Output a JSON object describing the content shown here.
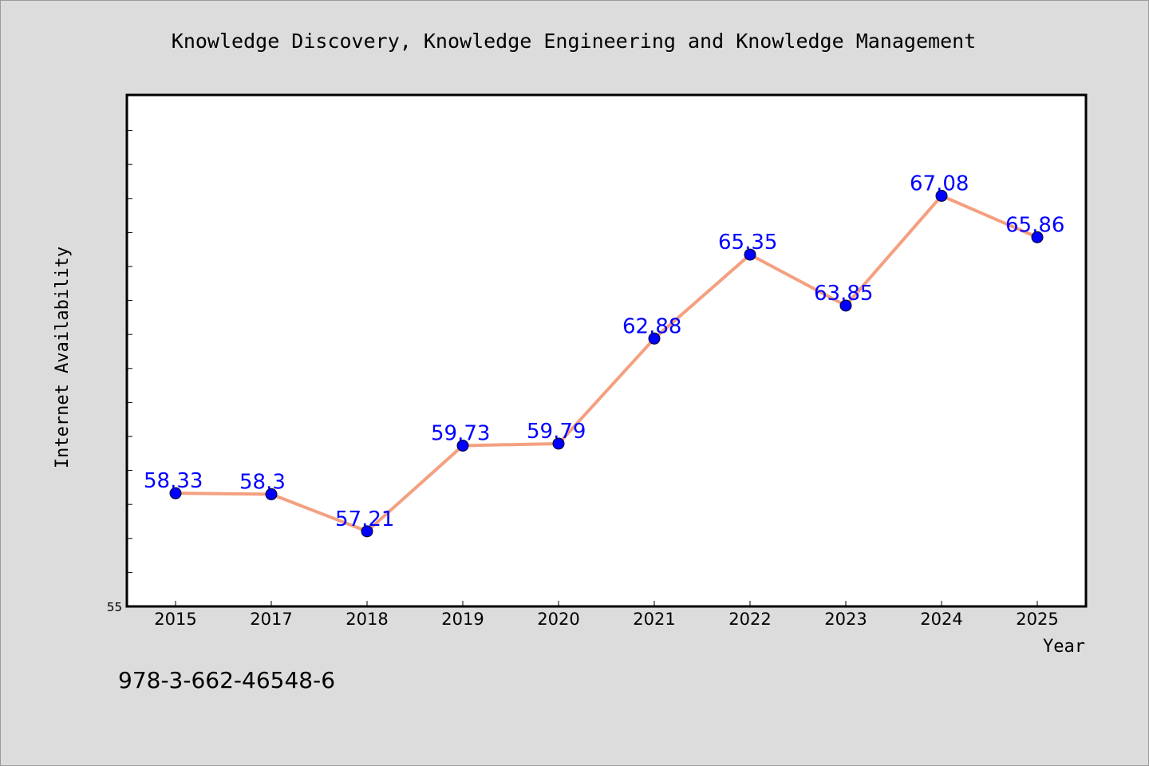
{
  "chart_data": {
    "type": "line",
    "title": "Knowledge Discovery, Knowledge Engineering and Knowledge Management",
    "xlabel": "Year",
    "ylabel": "Internet Availability",
    "categories": [
      "2015",
      "2017",
      "2018",
      "2019",
      "2020",
      "2021",
      "2022",
      "2023",
      "2024",
      "2025"
    ],
    "series": [
      {
        "values": [
          58.33,
          58.3,
          57.21,
          59.73,
          59.79,
          62.88,
          65.35,
          63.85,
          67.08,
          65.86
        ]
      }
    ],
    "data_labels": [
      "58.33",
      "58.3",
      "57.21",
      "59.73",
      "59.79",
      "62.88",
      "65.35",
      "63.85",
      "67.08",
      "65.86"
    ],
    "ylim": [
      55,
      70
    ],
    "y_tick_label": "55",
    "grid": false,
    "colors": {
      "line": "#f4a080",
      "marker": "#0000ff",
      "label": "#0000ff",
      "plot_bg": "#ffffff",
      "page_bg": "#dcdcdc"
    }
  },
  "footer": {
    "isbn": "978-3-662-46548-6"
  }
}
